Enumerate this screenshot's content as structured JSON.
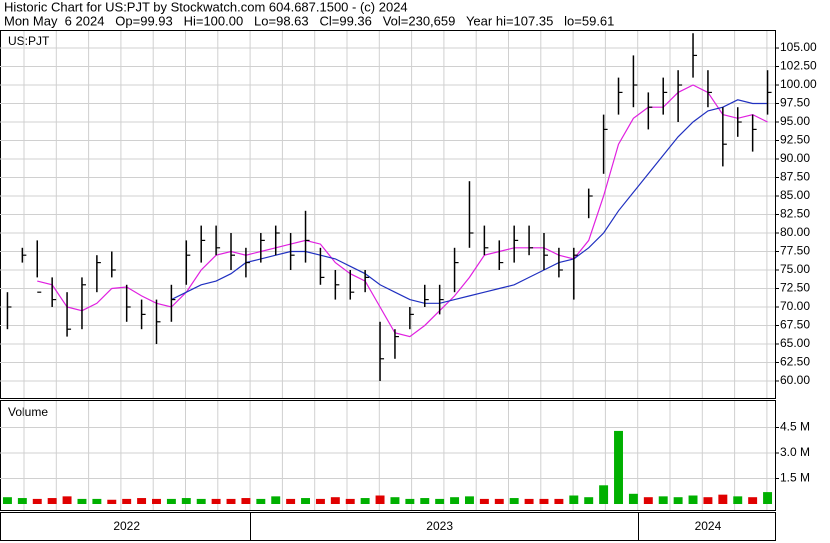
{
  "chart_data": [
    {
      "type": "hlc",
      "title": "Historic Chart for US:PJT by Stockwatch.com 604.687.1500 - (c) 2024",
      "subtitle": "Mon May  6 2024   Op=99.93   Hi=100.00   Lo=98.63   Cl=99.36   Vol=230,659   Year hi=107.35   lo=59.61",
      "label": "US:PJT",
      "color": "#000000",
      "high": [
        72,
        78,
        79,
        74,
        72,
        74,
        77,
        77.5,
        73,
        71,
        71,
        73,
        79,
        81,
        81,
        80,
        78,
        80,
        81,
        80,
        83,
        78,
        75,
        75,
        75,
        68,
        67,
        70,
        73,
        73,
        78,
        87,
        81,
        79,
        81,
        81,
        80,
        78,
        78,
        86,
        96,
        101,
        104,
        99,
        101,
        102,
        107,
        102,
        97,
        97,
        96,
        102
      ],
      "low": [
        67,
        76,
        74,
        70,
        66,
        67,
        72,
        74,
        68,
        67,
        65,
        68,
        73,
        76,
        77,
        75,
        74,
        76,
        77,
        75,
        76,
        73,
        71,
        71,
        72,
        60,
        63,
        67,
        70,
        69,
        72,
        78,
        77,
        75,
        76,
        77,
        75,
        74,
        71,
        82,
        88,
        96,
        97,
        94,
        96,
        95,
        101,
        97,
        89,
        93,
        91,
        96
      ],
      "close": [
        70,
        77,
        72,
        71,
        67,
        73,
        76,
        75,
        70,
        69,
        68,
        71,
        77,
        79,
        78,
        77,
        76,
        79,
        80,
        77,
        79,
        74,
        73,
        72,
        74,
        63,
        66,
        69,
        71,
        71,
        76,
        80,
        78,
        76,
        79,
        78,
        77,
        75,
        77,
        85,
        94,
        99,
        100,
        97,
        99,
        100,
        104,
        99,
        92,
        95,
        94,
        99
      ],
      "averages": [
        {
          "color": "#e020e0",
          "values": [
            null,
            null,
            73.5,
            73,
            70,
            69.5,
            70.5,
            72.5,
            72.7,
            71.5,
            70.5,
            70,
            72,
            75,
            77,
            77.5,
            77,
            77.5,
            78,
            78.5,
            79,
            78.5,
            76,
            74.5,
            73.5,
            70,
            66.5,
            66,
            67.5,
            69.5,
            71.5,
            74,
            77,
            77.5,
            78,
            78,
            78,
            77,
            76.5,
            79,
            85,
            92,
            95.5,
            97,
            97,
            99,
            100,
            99,
            96,
            95.5,
            96,
            95
          ]
        },
        {
          "color": "#2030c0",
          "values": [
            null,
            null,
            null,
            null,
            null,
            null,
            null,
            null,
            null,
            null,
            null,
            71,
            72,
            73,
            73.5,
            74.5,
            76,
            76.5,
            77,
            77.5,
            77.5,
            77,
            76.5,
            75.5,
            74.5,
            73,
            72,
            71,
            70.5,
            70.5,
            71,
            71.5,
            72,
            72.5,
            73,
            74,
            75,
            76,
            76.5,
            78,
            80,
            83,
            85.5,
            88,
            90.5,
            93,
            95,
            96.5,
            97,
            98,
            97.5,
            97.5
          ]
        }
      ],
      "ylim": [
        57.7,
        107.3
      ],
      "yticks": [
        {
          "value": 60,
          "label": "60.00"
        },
        {
          "value": 62.5,
          "label": "62.50"
        },
        {
          "value": 65,
          "label": "65.00"
        },
        {
          "value": 67.5,
          "label": "67.50"
        },
        {
          "value": 70,
          "label": "70.00"
        },
        {
          "value": 72.5,
          "label": "72.50"
        },
        {
          "value": 75,
          "label": "75.00"
        },
        {
          "value": 77.5,
          "label": "77.50"
        },
        {
          "value": 80,
          "label": "80.00"
        },
        {
          "value": 82.5,
          "label": "82.50"
        },
        {
          "value": 85,
          "label": "85.00"
        },
        {
          "value": 87.5,
          "label": "87.50"
        },
        {
          "value": 90,
          "label": "90.00"
        },
        {
          "value": 92.5,
          "label": "92.50"
        },
        {
          "value": 95,
          "label": "95.00"
        },
        {
          "value": 97.5,
          "label": "97.50"
        },
        {
          "value": 100,
          "label": "100.00"
        },
        {
          "value": 102.5,
          "label": "102.50"
        },
        {
          "value": 105,
          "label": "105.00"
        }
      ],
      "grid": true
    },
    {
      "type": "bar",
      "label": "Volume",
      "categories": [
        null,
        null,
        null,
        null,
        null,
        null,
        null,
        null,
        "2022",
        null,
        null,
        null,
        null,
        null,
        null,
        null,
        null,
        null,
        null,
        null,
        null,
        null,
        null,
        null,
        null,
        null,
        null,
        null,
        null,
        "2023",
        null,
        null,
        null,
        null,
        null,
        null,
        null,
        null,
        null,
        null,
        null,
        null,
        null,
        null,
        null,
        null,
        null,
        "2024",
        null,
        null,
        null,
        null
      ],
      "values": [
        0.4,
        0.35,
        0.3,
        0.35,
        0.45,
        0.3,
        0.3,
        0.25,
        0.3,
        0.35,
        0.3,
        0.3,
        0.35,
        0.3,
        0.3,
        0.3,
        0.35,
        0.3,
        0.45,
        0.3,
        0.35,
        0.3,
        0.4,
        0.3,
        0.35,
        0.5,
        0.4,
        0.3,
        0.35,
        0.3,
        0.4,
        0.45,
        0.3,
        0.3,
        0.35,
        0.3,
        0.3,
        0.3,
        0.5,
        0.4,
        1.1,
        4.3,
        0.6,
        0.4,
        0.45,
        0.4,
        0.5,
        0.4,
        0.55,
        0.45,
        0.4,
        0.7
      ],
      "up_color": "#00b000",
      "down_color": "#e00000",
      "ylim": [
        0,
        6.06
      ],
      "yticks": [
        {
          "value": 1.5,
          "label": "1.5 M"
        },
        {
          "value": 3,
          "label": "3.0 M"
        },
        {
          "value": 4.5,
          "label": "4.5 M"
        }
      ],
      "grid": true
    }
  ]
}
